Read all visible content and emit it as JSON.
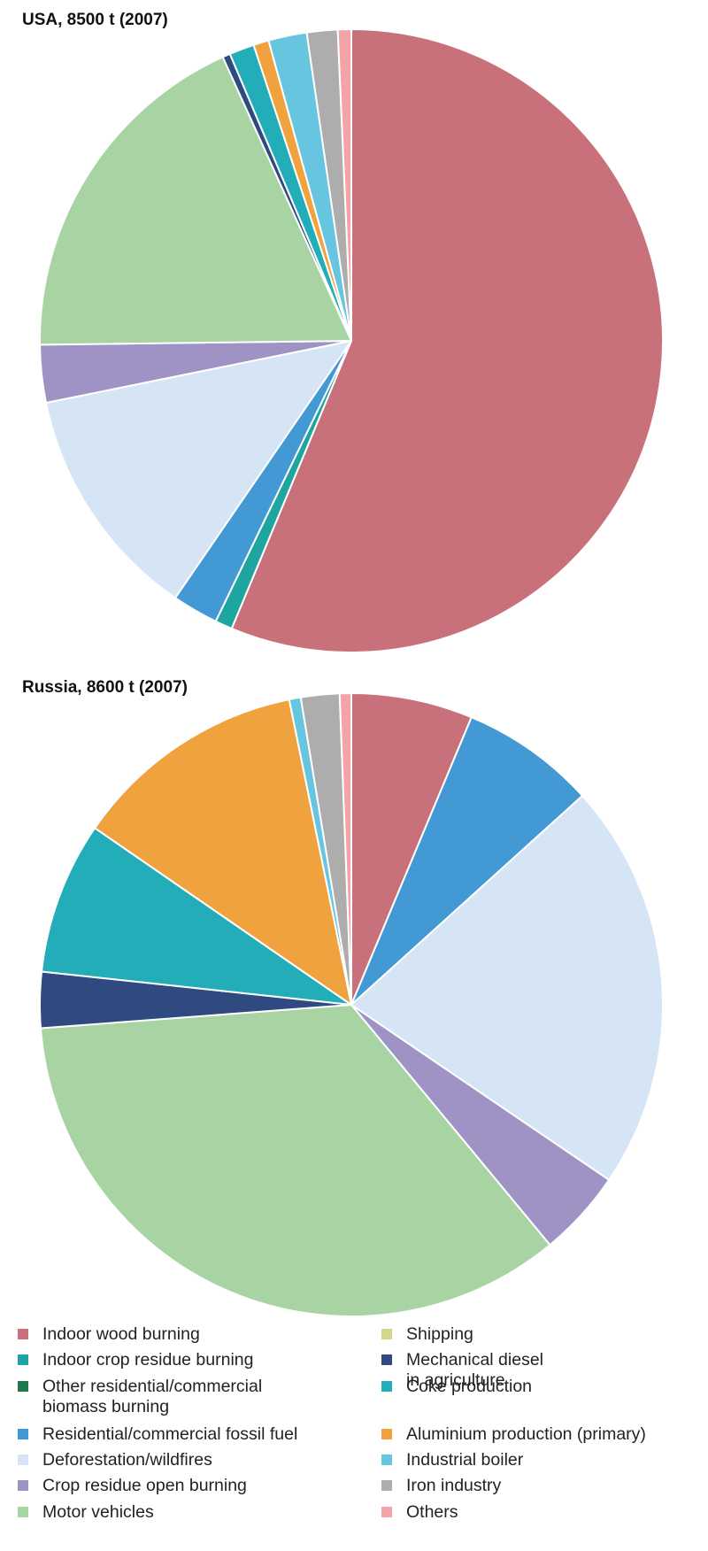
{
  "chart_data": [
    {
      "type": "pie",
      "title": "USA, 8500 t (2007)",
      "slices": [
        {
          "label": "Indoor wood burning",
          "value": 56.5,
          "color": "#c8717a"
        },
        {
          "label": "Indoor crop residue burning",
          "value": 0.9,
          "color": "#1fa5a0"
        },
        {
          "label": "Residential/commercial fossil fuel",
          "value": 2.4,
          "color": "#4399d4"
        },
        {
          "label": "Deforestation/wildfires",
          "value": 12.3,
          "color": "#d5e5f6"
        },
        {
          "label": "Crop residue open burning",
          "value": 3.0,
          "color": "#9f93c6"
        },
        {
          "label": "Motor vehicles",
          "value": 18.5,
          "color": "#a8d3a2"
        },
        {
          "label": "Mechanical diesel in agriculture",
          "value": 0.4,
          "color": "#2e4a80"
        },
        {
          "label": "Coke production",
          "value": 1.3,
          "color": "#22adb8"
        },
        {
          "label": "Aluminium production (primary)",
          "value": 0.8,
          "color": "#f0a23e"
        },
        {
          "label": "Industrial boiler",
          "value": 2.0,
          "color": "#67c5e0"
        },
        {
          "label": "Iron industry",
          "value": 1.6,
          "color": "#adadad"
        },
        {
          "label": "Others",
          "value": 0.7,
          "color": "#f4a3a6"
        }
      ]
    },
    {
      "type": "pie",
      "title": "Russia, 8600 t (2007)",
      "slices": [
        {
          "label": "Indoor wood burning",
          "value": 6.3,
          "color": "#c8717a"
        },
        {
          "label": "Residential/commercial fossil fuel",
          "value": 7.0,
          "color": "#4399d4"
        },
        {
          "label": "Deforestation/wildfires",
          "value": 21.2,
          "color": "#d5e5f6"
        },
        {
          "label": "Crop residue open burning",
          "value": 4.5,
          "color": "#9f93c6"
        },
        {
          "label": "Motor vehicles",
          "value": 34.8,
          "color": "#a8d3a2"
        },
        {
          "label": "Mechanical diesel in agriculture",
          "value": 2.9,
          "color": "#2e4a80"
        },
        {
          "label": "Coke production",
          "value": 7.9,
          "color": "#22adb8"
        },
        {
          "label": "Aluminium production (primary)",
          "value": 12.2,
          "color": "#f0a23e"
        },
        {
          "label": "Industrial boiler",
          "value": 0.6,
          "color": "#67c5e0"
        },
        {
          "label": "Iron industry",
          "value": 2.0,
          "color": "#adadad"
        },
        {
          "label": "Others",
          "value": 0.6,
          "color": "#f4a3a6"
        }
      ]
    }
  ],
  "legend": {
    "left": [
      {
        "label": "Indoor wood burning",
        "color": "#c8717a"
      },
      {
        "label": "Indoor crop residue burning",
        "color": "#1fa5a0"
      },
      {
        "label": "Other residential/commercial\nbiomass burning",
        "color": "#1e7a4a"
      },
      {
        "label": "Residential/commercial fossil fuel",
        "color": "#4399d4"
      },
      {
        "label": "Deforestation/wildfires",
        "color": "#d5e5f6"
      },
      {
        "label": "Crop residue open burning",
        "color": "#9f93c6"
      },
      {
        "label": "Motor vehicles",
        "color": "#a8d3a2"
      }
    ],
    "right": [
      {
        "label": "Shipping",
        "color": "#d4d68a"
      },
      {
        "label": "Mechanical diesel\nin agriculture",
        "color": "#2e4a80"
      },
      {
        "label": "Coke production",
        "color": "#22adb8"
      },
      {
        "label": "Aluminium production (primary)",
        "color": "#f0a23e"
      },
      {
        "label": "Industrial boiler",
        "color": "#67c5e0"
      },
      {
        "label": "Iron industry",
        "color": "#adadad"
      },
      {
        "label": "Others",
        "color": "#f4a3a6"
      }
    ]
  }
}
